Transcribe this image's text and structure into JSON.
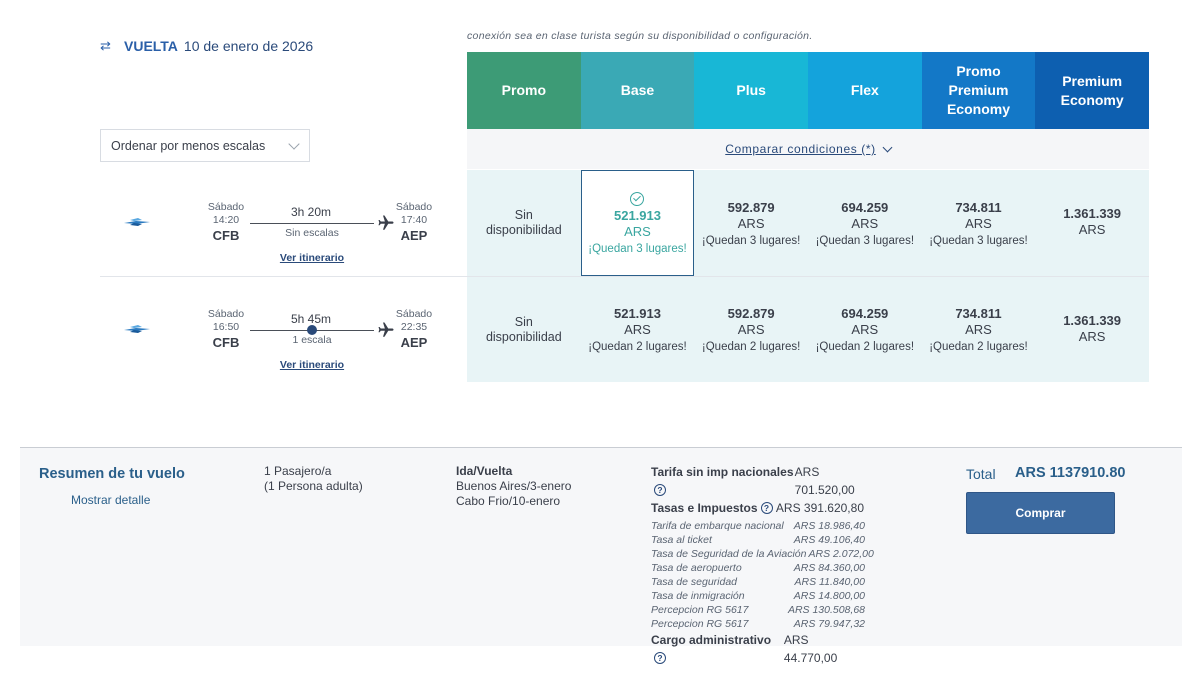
{
  "return_header": {
    "label": "VUELTA",
    "date": "10 de enero de 2026"
  },
  "note": "conexión sea en clase turista según su disponibilidad o configuración.",
  "sort": {
    "value": "Ordenar por menos escalas"
  },
  "fare_classes": [
    {
      "name": "Promo",
      "color": "#3d9b76"
    },
    {
      "name": "Base",
      "color": "#3aa9b5"
    },
    {
      "name": "Plus",
      "color": "#18b7d6"
    },
    {
      "name": "Flex",
      "color": "#14a3dc"
    },
    {
      "name": "Promo Premium Economy",
      "color": "#1378c7"
    },
    {
      "name": "Premium Economy",
      "color": "#0d5fb0"
    }
  ],
  "compare_label": "Comparar condiciones (*)",
  "flights": [
    {
      "dep_day": "Sábado",
      "dep_time": "14:20",
      "dep_code": "CFB",
      "arr_day": "Sábado",
      "arr_time": "17:40",
      "arr_code": "AEP",
      "duration": "3h 20m",
      "stops": "Sin escalas",
      "itinerary_link": "Ver itinerario",
      "fares": [
        {
          "na": "Sin disponibilidad"
        },
        {
          "price": "521.913",
          "currency": "ARS",
          "availability": "¡Quedan 3 lugares!",
          "selected": true
        },
        {
          "price": "592.879",
          "currency": "ARS",
          "availability": "¡Quedan 3 lugares!"
        },
        {
          "price": "694.259",
          "currency": "ARS",
          "availability": "¡Quedan 3 lugares!"
        },
        {
          "price": "734.811",
          "currency": "ARS",
          "availability": "¡Quedan 3 lugares!"
        },
        {
          "price": "1.361.339",
          "currency": "ARS",
          "availability": ""
        }
      ]
    },
    {
      "dep_day": "Sábado",
      "dep_time": "16:50",
      "dep_code": "CFB",
      "arr_day": "Sábado",
      "arr_time": "22:35",
      "arr_code": "AEP",
      "duration": "5h 45m",
      "stops": "1 escala",
      "itinerary_link": "Ver itinerario",
      "fares": [
        {
          "na": "Sin disponibilidad"
        },
        {
          "price": "521.913",
          "currency": "ARS",
          "availability": "¡Quedan 2 lugares!"
        },
        {
          "price": "592.879",
          "currency": "ARS",
          "availability": "¡Quedan 2 lugares!"
        },
        {
          "price": "694.259",
          "currency": "ARS",
          "availability": "¡Quedan 2 lugares!"
        },
        {
          "price": "734.811",
          "currency": "ARS",
          "availability": "¡Quedan 2 lugares!"
        },
        {
          "price": "1.361.339",
          "currency": "ARS",
          "availability": ""
        }
      ]
    }
  ],
  "summary": {
    "title": "Resumen de tu vuelo",
    "detail_link": "Mostrar detalle",
    "passengers_line1": "1 Pasajero/a",
    "passengers_line2": "(1 Persona adulta)",
    "trip_type": "Ida/Vuelta",
    "leg1": "Buenos Aires/3-enero",
    "leg2": "Cabo Frio/10-enero",
    "fare_no_tax_label": "Tarifa sin imp nacionales",
    "fare_no_tax_value": "ARS 701.520,00",
    "taxes_label": "Tasas e Impuestos",
    "taxes_value": "ARS 391.620,80",
    "tax_items": [
      {
        "label": "Tarifa de embarque nacional",
        "value": "ARS 18.986,40"
      },
      {
        "label": "Tasa al ticket",
        "value": "ARS 49.106,40"
      },
      {
        "label": "Tasa de Seguridad de la Aviación",
        "value": "ARS 2.072,00"
      },
      {
        "label": "Tasa de aeropuerto",
        "value": "ARS 84.360,00"
      },
      {
        "label": "Tasa de seguridad",
        "value": "ARS 11.840,00"
      },
      {
        "label": "Tasa de inmigración",
        "value": "ARS 14.800,00"
      },
      {
        "label": "Percepcion RG 5617",
        "value": "ARS 130.508,68"
      },
      {
        "label": "Percepcion RG 5617",
        "value": "ARS 79.947,32"
      }
    ],
    "admin_label": "Cargo administrativo",
    "admin_value": "ARS 44.770,00",
    "total_label": "Total",
    "total_value": "ARS 1137910.80",
    "buy_label": "Comprar"
  }
}
